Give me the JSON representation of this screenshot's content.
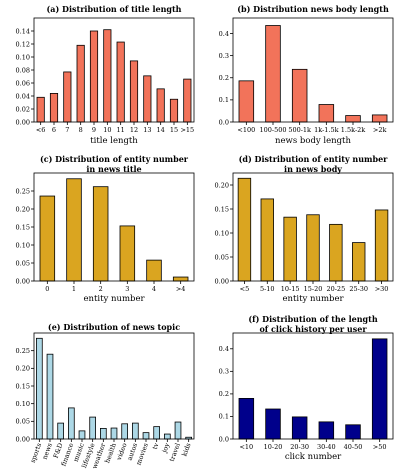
{
  "chart_data": [
    {
      "type": "bar",
      "title": "(a) Distribution of title length",
      "xlabel": "title length",
      "ylabel": "",
      "categories": [
        "<6",
        "6",
        "7",
        "8",
        "9",
        "10",
        "11",
        "12",
        "13",
        "14",
        "15",
        ">15"
      ],
      "values": [
        0.038,
        0.044,
        0.077,
        0.118,
        0.14,
        0.142,
        0.123,
        0.094,
        0.071,
        0.051,
        0.035,
        0.066
      ],
      "ylim": [
        0,
        0.16
      ],
      "yticks": [
        "0.00",
        "0.02",
        "0.04",
        "0.06",
        "0.08",
        "0.10",
        "0.12",
        "0.14"
      ],
      "color": "#f2735a"
    },
    {
      "type": "bar",
      "title": "(b) Distribution news body length",
      "xlabel": "news body length",
      "ylabel": "",
      "categories": [
        "<100",
        "100-500",
        "500-1k",
        "1k-1.5k",
        "1.5k-2k",
        ">2k"
      ],
      "values": [
        0.186,
        0.436,
        0.238,
        0.079,
        0.029,
        0.032
      ],
      "ylim": [
        0,
        0.47
      ],
      "yticks": [
        "0.0",
        "0.1",
        "0.2",
        "0.3",
        "0.4"
      ],
      "color": "#f2735a"
    },
    {
      "type": "bar",
      "title": "(c) Distribution of entity number in news title",
      "xlabel": "entity number",
      "ylabel": "",
      "categories": [
        "0",
        "1",
        "2",
        "3",
        "4",
        ">4"
      ],
      "values": [
        0.236,
        0.284,
        0.262,
        0.153,
        0.058,
        0.011
      ],
      "ylim": [
        0,
        0.3
      ],
      "yticks": [
        "0.00",
        "0.05",
        "0.10",
        "0.15",
        "0.20",
        "0.25"
      ],
      "color": "#daa520"
    },
    {
      "type": "bar",
      "title": "(d) Distribution of entity number in news body",
      "xlabel": "entity number",
      "ylabel": "",
      "categories": [
        "<5",
        "5-10",
        "10-15",
        "15-20",
        "20-25",
        "25-30",
        ">30"
      ],
      "values": [
        0.214,
        0.171,
        0.133,
        0.138,
        0.118,
        0.08,
        0.148
      ],
      "ylim": [
        0,
        0.225
      ],
      "yticks": [
        "0.00",
        "0.05",
        "0.10",
        "0.15",
        "0.20"
      ],
      "color": "#daa520"
    },
    {
      "type": "bar",
      "title": "(e) Distribution of news topic",
      "xlabel": "",
      "ylabel": "",
      "categories": [
        "sports",
        "news",
        "F&D",
        "finance",
        "music",
        "lifestyle",
        "weather",
        "health",
        "video",
        "autos",
        "movies",
        "tv",
        "joy",
        "travel",
        "kids"
      ],
      "values": [
        0.285,
        0.24,
        0.045,
        0.088,
        0.023,
        0.062,
        0.03,
        0.031,
        0.043,
        0.045,
        0.018,
        0.035,
        0.014,
        0.048,
        0.005
      ],
      "ylim": [
        0,
        0.3
      ],
      "yticks": [
        "0.00",
        "0.05",
        "0.10",
        "0.15",
        "0.20",
        "0.25"
      ],
      "color": "#add8e6"
    },
    {
      "type": "bar",
      "title": "(f) Distribution of the length of click history per user",
      "xlabel": "click number",
      "ylabel": "",
      "categories": [
        "<10",
        "10-20",
        "20-30",
        "30-40",
        "40-50",
        ">50"
      ],
      "values": [
        0.18,
        0.133,
        0.098,
        0.076,
        0.063,
        0.444
      ],
      "ylim": [
        0,
        0.47
      ],
      "yticks": [
        "0.0",
        "0.1",
        "0.2",
        "0.3",
        "0.4"
      ],
      "color": "#00008b"
    }
  ]
}
